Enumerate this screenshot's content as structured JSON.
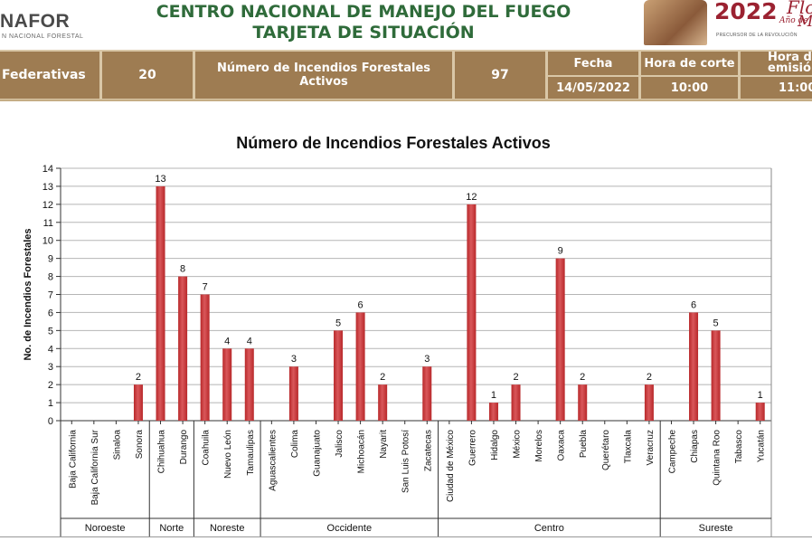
{
  "header": {
    "logo": "NAFOR",
    "logo_sub": "N NACIONAL FORESTAL",
    "title_line1": "CENTRO NACIONAL DE MANEJO DEL FUEGO",
    "title_line2": "TARJETA DE SITUACIÓN",
    "badge_year": "2022",
    "badge_flo": "Flo",
    "badge_anio": "Año de",
    "badge_ma": "Ma",
    "badge_prec": "PRECURSOR DE LA REVOLUCIÓN"
  },
  "infobar": {
    "federativas_label": "Federativas",
    "federativas_value": "20",
    "incendios_label": "Número de Incendios Forestales Activos",
    "incendios_value": "97",
    "fecha_label": "Fecha",
    "fecha_value": "14/05/2022",
    "hora_corte_label": "Hora de corte",
    "hora_corte_value": "10:00",
    "hora_emision_label_1": "Hora d",
    "hora_emision_label_2": "emisió",
    "hora_emision_value": "11:00"
  },
  "colors": {
    "bar": "#b8282a",
    "bar_highlight": "#d9575a",
    "title_green": "#2f6b3a",
    "info_cell": "#9e7c52",
    "info_bg": "#d9c7a7",
    "grid": "#b5b5b5"
  },
  "chart_data": {
    "type": "bar",
    "title": "Número de Incendios Forestales Activos",
    "ylabel": "No. de Incendios Forestales",
    "xlabel": "",
    "ylim": [
      0,
      14
    ],
    "yticks": [
      0,
      1,
      2,
      3,
      4,
      5,
      6,
      7,
      8,
      9,
      10,
      11,
      12,
      13,
      14
    ],
    "grid": true,
    "categories": [
      "Baja California",
      "Baja California Sur",
      "Sinaloa",
      "Sonora",
      "Chihuahua",
      "Durango",
      "Coahuila",
      "Nuevo León",
      "Tamaulipas",
      "Aguascalientes",
      "Colima",
      "Guanajuato",
      "Jalisco",
      "Michoacán",
      "Nayarit",
      "San Luis Potosí",
      "Zacatecas",
      "Ciudad de México",
      "Guerrero",
      "Hidalgo",
      "México",
      "Morelos",
      "Oaxaca",
      "Puebla",
      "Querétaro",
      "Tlaxcala",
      "Veracruz",
      "Campeche",
      "Chiapas",
      "Quintana Roo",
      "Tabasco",
      "Yucatán"
    ],
    "values": [
      0,
      0,
      0,
      2,
      13,
      8,
      7,
      4,
      4,
      0,
      3,
      0,
      5,
      6,
      2,
      0,
      3,
      0,
      12,
      1,
      2,
      0,
      9,
      2,
      0,
      0,
      2,
      0,
      6,
      5,
      0,
      1
    ],
    "groups": [
      {
        "name": "Noroeste",
        "count": 4
      },
      {
        "name": "Norte",
        "count": 2
      },
      {
        "name": "Noreste",
        "count": 3
      },
      {
        "name": "Occidente",
        "count": 8
      },
      {
        "name": "Centro",
        "count": 10
      },
      {
        "name": "Sureste",
        "count": 5
      }
    ]
  }
}
